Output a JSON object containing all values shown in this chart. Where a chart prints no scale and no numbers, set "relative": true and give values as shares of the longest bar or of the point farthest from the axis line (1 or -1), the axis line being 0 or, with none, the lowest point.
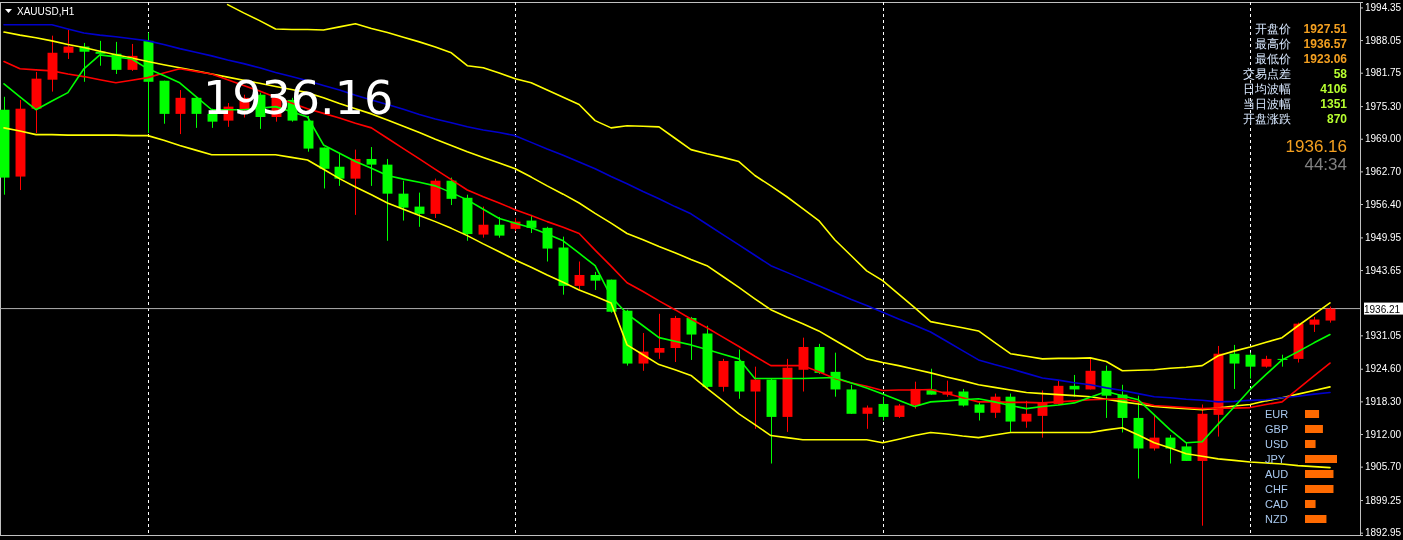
{
  "chart_data": [
    {
      "type": "candlestick",
      "title": "XAUUSD,H1",
      "categories": [
        null,
        null,
        null,
        null,
        null,
        null,
        null,
        null,
        null,
        null,
        null,
        null,
        null,
        null,
        null,
        null,
        null,
        null,
        null,
        null,
        null,
        null,
        null,
        null,
        null,
        null,
        null,
        null,
        null,
        null,
        null,
        null,
        null,
        null,
        null,
        null,
        null,
        null,
        null,
        null,
        null,
        null,
        null,
        null,
        null,
        null,
        null,
        null,
        null,
        null,
        null,
        null,
        null,
        null,
        null,
        null,
        null,
        null,
        null,
        null,
        null,
        null,
        null,
        null,
        null,
        null,
        null,
        null,
        null,
        null,
        null,
        null,
        null,
        null,
        null,
        null,
        null,
        null,
        null,
        null,
        null,
        null,
        null,
        null
      ],
      "ylim": [
        1892.5,
        1995.4
      ],
      "yticks": [
        1892.95,
        1899.25,
        {
          "value": 1905.7,
          "label": "1905.70"
        },
        {
          "value": 1912,
          "label": "1912.00"
        },
        {
          "value": 1918.3,
          "label": "1918.30"
        },
        {
          "value": 1924.6,
          "label": "1924.60"
        },
        1931.05,
        1943.65,
        1949.95,
        {
          "value": 1956.4,
          "label": "1956.40"
        },
        {
          "value": 1962.7,
          "label": "1962.70"
        },
        {
          "value": 1969,
          "label": "1969.00"
        },
        {
          "value": 1975.3,
          "label": "1975.30"
        },
        1981.75,
        1988.05,
        1994.35
      ],
      "tick_labels": "y",
      "grid": "x",
      "ref_lines": [
        {
          "axis": "y",
          "value": 1936.21,
          "label": "1936.21",
          "color": "#b0b0b0"
        }
      ],
      "annotations": [
        "1936.16",
        "开盘价",
        "1927.51",
        "最高价",
        "1936.57",
        "最低价",
        "1923.06",
        "交易点差",
        "58",
        "日均波幅",
        "4106",
        "当日波幅",
        "1351",
        "开盘涨跌",
        "870",
        "1936.16",
        "44:34"
      ],
      "series": [
        {
          "type": "candlestick",
          "ohlc": [
            [
              1974.6,
              1977.1,
              1958.2,
              1961.5
            ],
            [
              1961.7,
              1976.5,
              1959.1,
              1974.8
            ],
            [
              1974.8,
              1981.9,
              1970.1,
              1980.6
            ],
            [
              1980.4,
              1988.9,
              1978.1,
              1985.6
            ],
            [
              1985.6,
              1990.0,
              1984.4,
              1986.8
            ],
            [
              1986.8,
              1987.5,
              1980.0,
              1985.8
            ],
            [
              1985.8,
              1987.9,
              1983.1,
              1985.4
            ],
            [
              1985.4,
              1987.7,
              1981.5,
              1982.3
            ],
            [
              1982.3,
              1987.3,
              1982.1,
              1985.0
            ],
            [
              1987.9,
              1989.5,
              1970.1,
              1980.0
            ],
            [
              1980.2,
              1980.2,
              1971.9,
              1973.8
            ],
            [
              1973.8,
              1978.4,
              1969.9,
              1976.9
            ],
            [
              1976.9,
              1977.1,
              1971.1,
              1973.8
            ],
            [
              1973.8,
              1974.8,
              1971.1,
              1972.3
            ],
            [
              1972.5,
              1975.9,
              1971.3,
              1975.2
            ],
            [
              1974.6,
              1977.5,
              1973.1,
              1976.9
            ],
            [
              1977.5,
              1977.9,
              1970.9,
              1973.2
            ],
            [
              1973.2,
              1977.1,
              1972.3,
              1976.9
            ],
            [
              1976.5,
              1976.9,
              1972.3,
              1972.5
            ],
            [
              1972.5,
              1973.4,
              1966.5,
              1967.1
            ],
            [
              1967.3,
              1967.3,
              1959.4,
              1963.2
            ],
            [
              1963.6,
              1966.3,
              1959.9,
              1961.3
            ],
            [
              1961.3,
              1966.9,
              1954.3,
              1965.1
            ],
            [
              1965.1,
              1967.4,
              1959.9,
              1964.0
            ],
            [
              1964.0,
              1965.1,
              1949.3,
              1958.4
            ],
            [
              1958.4,
              1960.9,
              1953.2,
              1955.7
            ],
            [
              1955.9,
              1958.6,
              1952.0,
              1954.5
            ],
            [
              1954.5,
              1961.3,
              1953.7,
              1960.9
            ],
            [
              1960.9,
              1961.5,
              1956.2,
              1957.4
            ],
            [
              1957.6,
              1958.2,
              1949.3,
              1950.6
            ],
            [
              1950.5,
              1955.9,
              1949.9,
              1952.4
            ],
            [
              1952.4,
              1953.9,
              1949.9,
              1950.3
            ],
            [
              1951.6,
              1953.7,
              1951.2,
              1953.0
            ],
            [
              1953.2,
              1954.3,
              1950.8,
              1951.8
            ],
            [
              1951.8,
              1952.0,
              1945.3,
              1947.8
            ],
            [
              1948.0,
              1950.1,
              1938.9,
              1940.6
            ],
            [
              1940.6,
              1945.3,
              1939.8,
              1942.7
            ],
            [
              1942.7,
              1943.3,
              1939.8,
              1941.6
            ],
            [
              1941.8,
              1941.8,
              1935.4,
              1935.6
            ],
            [
              1935.8,
              1936.0,
              1925.2,
              1925.6
            ],
            [
              1925.6,
              1931.5,
              1924.2,
              1927.9
            ],
            [
              1927.7,
              1935.2,
              1926.5,
              1928.6
            ],
            [
              1928.6,
              1934.8,
              1925.9,
              1934.4
            ],
            [
              1934.4,
              1934.6,
              1926.3,
              1931.2
            ],
            [
              1931.4,
              1932.9,
              1920.9,
              1921.1
            ],
            [
              1921.1,
              1926.5,
              1920.2,
              1926.1
            ],
            [
              1926.1,
              1928.3,
              1918.8,
              1920.2
            ],
            [
              1920.2,
              1925.0,
              1913.0,
              1922.5
            ],
            [
              1922.5,
              1922.7,
              1906.3,
              1915.3
            ],
            [
              1915.3,
              1926.5,
              1912.4,
              1924.8
            ],
            [
              1924.4,
              1930.6,
              1920.2,
              1928.8
            ],
            [
              1928.8,
              1929.4,
              1923.6,
              1923.8
            ],
            [
              1924.0,
              1927.7,
              1919.2,
              1920.6
            ],
            [
              1920.6,
              1921.5,
              1915.9,
              1915.9
            ],
            [
              1915.9,
              1917.5,
              1913.0,
              1917.1
            ],
            [
              1917.8,
              1919.2,
              1914.6,
              1915.3
            ],
            [
              1915.3,
              1917.8,
              1915.1,
              1917.5
            ],
            [
              1917.5,
              1922.1,
              1916.9,
              1920.7
            ],
            [
              1920.6,
              1924.6,
              1919.6,
              1919.6
            ],
            [
              1919.6,
              1922.3,
              1919.2,
              1920.2
            ],
            [
              1920.2,
              1920.7,
              1917.3,
              1917.5
            ],
            [
              1917.7,
              1918.2,
              1914.6,
              1916.1
            ],
            [
              1916.1,
              1919.8,
              1915.1,
              1919.2
            ],
            [
              1919.2,
              1919.8,
              1912.4,
              1914.4
            ],
            [
              1914.4,
              1918.4,
              1913.2,
              1915.9
            ],
            [
              1915.5,
              1920.4,
              1911.3,
              1918.0
            ],
            [
              1917.8,
              1922.3,
              1917.7,
              1921.3
            ],
            [
              1921.3,
              1923.4,
              1919.2,
              1920.6
            ],
            [
              1920.6,
              1926.7,
              1920.6,
              1924.2
            ],
            [
              1924.2,
              1925.2,
              1915.1,
              1919.4
            ],
            [
              1919.6,
              1921.5,
              1912.3,
              1915.1
            ],
            [
              1915.1,
              1919.4,
              1903.4,
              1909.2
            ],
            [
              1909.2,
              1915.5,
              1908.8,
              1911.3
            ],
            [
              1911.3,
              1911.8,
              1906.3,
              1909.2
            ],
            [
              1909.6,
              1910.3,
              1906.8,
              1906.8
            ],
            [
              1906.8,
              1917.7,
              1894.3,
              1915.9
            ],
            [
              1915.7,
              1929.0,
              1911.5,
              1927.5
            ],
            [
              1927.5,
              1929.2,
              1920.7,
              1925.6
            ],
            [
              1927.3,
              1927.7,
              1922.7,
              1925.0
            ],
            [
              1925.0,
              1927.1,
              1924.8,
              1926.5
            ],
            [
              1926.5,
              1927.3,
              1925.0,
              1926.3
            ],
            [
              1926.5,
              1933.5,
              1925.8,
              1933.3
            ],
            [
              1933.1,
              1934.6,
              1931.7,
              1934.1
            ],
            [
              1933.9,
              1936.6,
              1933.5,
              1936.2
            ]
          ],
          "colors": [
            "#00ff00",
            "#ff0000",
            "#ff0000",
            "#ff0000",
            "#ff0000",
            "#00ff00",
            "#00ff00",
            "#00ff00",
            "#ff0000",
            "#00ff00",
            "#00ff00",
            "#ff0000",
            "#00ff00",
            "#00ff00",
            "#ff0000",
            "#ff0000",
            "#00ff00",
            "#ff0000",
            "#00ff00",
            "#00ff00",
            "#00ff00",
            "#00ff00",
            "#ff0000",
            "#00ff00",
            "#00ff00",
            "#00ff00",
            "#00ff00",
            "#ff0000",
            "#00ff00",
            "#00ff00",
            "#ff0000",
            "#00ff00",
            "#ff0000",
            "#00ff00",
            "#00ff00",
            "#00ff00",
            "#ff0000",
            "#00ff00",
            "#00ff00",
            "#00ff00",
            "#ff0000",
            "#ff0000",
            "#ff0000",
            "#00ff00",
            "#00ff00",
            "#ff0000",
            "#00ff00",
            "#ff0000",
            "#00ff00",
            "#ff0000",
            "#ff0000",
            "#00ff00",
            "#00ff00",
            "#00ff00",
            "#ff0000",
            "#00ff00",
            "#ff0000",
            "#ff0000",
            "#00ff00",
            "#ff0000",
            "#00ff00",
            "#00ff00",
            "#ff0000",
            "#00ff00",
            "#ff0000",
            "#ff0000",
            "#ff0000",
            "#00ff00",
            "#ff0000",
            "#00ff00",
            "#00ff00",
            "#00ff00",
            "#ff0000",
            "#00ff00",
            "#00ff00",
            "#ff0000",
            "#ff0000",
            "#00ff00",
            "#00ff00",
            "#ff0000",
            "#00ff00",
            "#ff0000",
            "#ff0000",
            "#ff0000"
          ]
        },
        {
          "type": "line",
          "color": "#ffff00",
          "values": [
            null,
            null,
            null,
            null,
            null,
            null,
            null,
            null,
            null,
            null,
            null,
            null,
            null,
            null,
            1994.9,
            1993.3,
            1991.8,
            1990.2,
            1990.1,
            1990.1,
            1990.0,
            1990.6,
            1991.2,
            1990.3,
            1989.5,
            1988.6,
            1987.7,
            1986.7,
            1985.6,
            1983.1,
            1982.7,
            1981.7,
            1980.6,
            1979.8,
            1978.4,
            1977.0,
            1975.6,
            1972.5,
            1971.1,
            1971.5,
            1971.4,
            1971.3,
            1969.1,
            1966.9,
            1966.1,
            1965.4,
            1964.6,
            1961.9,
            1959.9,
            1957.8,
            1955.5,
            1953.2,
            1949.5,
            1946.5,
            1943.5,
            1941.6,
            1939.0,
            1936.4,
            1933.7,
            1933.1,
            1932.5,
            1931.9,
            1929.7,
            1927.5,
            1927.0,
            1926.5,
            1926.6,
            1926.6,
            1926.7,
            1926.0,
            1924.2,
            1924.3,
            1924.4,
            1924.7,
            1924.9,
            1925.2,
            1927.1,
            1928.0,
            1928.8,
            1929.7,
            1930.6,
            1932.9,
            1935.1,
            1937.3
          ]
        },
        {
          "type": "line",
          "color": "#ffff00",
          "values": [
            1989.6,
            1989.0,
            1988.5,
            1987.9,
            1987.2,
            1986.6,
            1985.9,
            1985.2,
            1984.6,
            1983.9,
            1983.3,
            1982.7,
            1982.1,
            1981.5,
            1980.9,
            1980.3,
            1979.7,
            1979.1,
            1978.5,
            1977.9,
            1976.9,
            1975.8,
            1974.8,
            1973.8,
            1972.6,
            1971.4,
            1970.2,
            1968.9,
            1967.7,
            1966.5,
            1965.4,
            1964.3,
            1963.2,
            1961.6,
            1959.9,
            1958.3,
            1956.6,
            1954.6,
            1952.7,
            1950.7,
            1949.5,
            1948.2,
            1947.0,
            1945.7,
            1944.5,
            1942.4,
            1940.3,
            1938.1,
            1936.0,
            1934.6,
            1933.3,
            1931.9,
            1930.1,
            1928.3,
            1926.5,
            1925.8,
            1925.2,
            1924.5,
            1923.8,
            1923.0,
            1922.3,
            1921.5,
            1921.0,
            1920.5,
            1920.0,
            1919.8,
            1919.6,
            1919.4,
            1919.2,
            1918.7,
            1918.2,
            1917.8,
            1917.3,
            1917.1,
            1916.9,
            1916.7,
            1917.0,
            1917.4,
            1917.7,
            1918.4,
            1919.0,
            1919.7,
            1920.4,
            1921.1
          ]
        },
        {
          "type": "line",
          "color": "#ffff00",
          "values": [
            1971.1,
            1970.5,
            1969.8,
            1969.8,
            1969.7,
            1969.7,
            1969.7,
            1969.7,
            1969.6,
            1969.6,
            1968.7,
            1967.7,
            1966.8,
            1965.9,
            1965.9,
            1965.9,
            1965.9,
            1965.9,
            1965.4,
            1964.9,
            1963.1,
            1961.3,
            1959.7,
            1958.2,
            1956.6,
            1955.4,
            1954.2,
            1953.0,
            1951.7,
            1950.3,
            1948.7,
            1947.2,
            1945.6,
            1944.2,
            1942.7,
            1941.3,
            1939.8,
            1938.6,
            1937.3,
            1929.2,
            1927.3,
            1925.4,
            1924.4,
            1923.3,
            1920.8,
            1918.4,
            1915.9,
            1913.8,
            1911.7,
            1911.3,
            1910.9,
            1910.9,
            1910.9,
            1910.9,
            1910.9,
            1910.3,
            1911.0,
            1911.7,
            1912.3,
            1912.0,
            1911.6,
            1911.3,
            1911.8,
            1912.3,
            1912.3,
            1912.3,
            1912.3,
            1912.3,
            1912.3,
            1912.8,
            1913.2,
            1911.8,
            1910.3,
            1909.3,
            1908.2,
            1907.7,
            1907.2,
            1906.9,
            1906.6,
            1906.4,
            1906.2,
            1905.9,
            1905.7,
            1905.5
          ]
        },
        {
          "type": "line",
          "color": "#0000cc",
          "values": [
            1991.0,
            1991.0,
            1991.0,
            1991.0,
            1990.2,
            1989.4,
            1989.0,
            1988.7,
            1988.3,
            1987.9,
            1987.2,
            1986.4,
            1985.7,
            1985.0,
            1984.2,
            1983.5,
            1982.7,
            1981.8,
            1981.0,
            1980.2,
            1979.3,
            1978.4,
            1977.4,
            1976.5,
            1975.6,
            1974.7,
            1973.7,
            1972.8,
            1972.1,
            1971.3,
            1970.7,
            1970.2,
            1969.6,
            1968.3,
            1967.0,
            1965.8,
            1964.5,
            1963.2,
            1961.7,
            1960.3,
            1958.8,
            1957.4,
            1955.9,
            1954.5,
            1952.5,
            1950.5,
            1948.5,
            1946.5,
            1944.5,
            1943.2,
            1941.9,
            1940.6,
            1939.3,
            1938.0,
            1936.8,
            1935.5,
            1934.2,
            1933.0,
            1931.7,
            1929.9,
            1928.1,
            1926.3,
            1925.4,
            1924.6,
            1923.7,
            1922.8,
            1922.4,
            1921.9,
            1921.5,
            1920.9,
            1920.4,
            1919.8,
            1919.2,
            1919.0,
            1918.7,
            1918.5,
            1918.2,
            1918.3,
            1918.5,
            1918.6,
            1919.0,
            1919.3,
            1919.7,
            1920.0
          ]
        },
        {
          "type": "line",
          "color": "#ff0000",
          "values": [
            1983.9,
            1982.5,
            1982.3,
            1982.1,
            1981.5,
            1981.0,
            1980.4,
            1979.8,
            1980.3,
            1980.8,
            1981.7,
            1982.5,
            1982.0,
            1981.5,
            1980.4,
            1979.3,
            1978.2,
            1977.0,
            1975.9,
            1974.8,
            1973.9,
            1973.0,
            1972.0,
            1971.1,
            1969.1,
            1967.1,
            1965.1,
            1963.1,
            1961.1,
            1959.1,
            1957.8,
            1956.6,
            1955.3,
            1954.2,
            1953.0,
            1951.9,
            1950.7,
            1947.5,
            1944.4,
            1941.2,
            1939.5,
            1937.7,
            1936.0,
            1934.2,
            1932.5,
            1930.7,
            1928.9,
            1927.0,
            1925.2,
            1925.2,
            1925.2,
            1924.0,
            1922.7,
            1921.9,
            1921.2,
            1920.4,
            1920.5,
            1920.5,
            1920.6,
            1919.8,
            1919.0,
            1918.2,
            1918.2,
            1918.1,
            1918.1,
            1918.0,
            1918.2,
            1918.4,
            1918.6,
            1918.7,
            1918.8,
            1918.2,
            1917.5,
            1917.3,
            1917.1,
            1916.9,
            1917.0,
            1917.0,
            1917.1,
            1917.7,
            1918.2,
            1920.7,
            1923.2,
            1925.7
          ]
        },
        {
          "type": "line",
          "color": "#00ff00",
          "values": [
            1979.6,
            1977.1,
            1974.6,
            1976.3,
            1977.9,
            1982.5,
            1985.2,
            1984.8,
            1984.4,
            1982.5,
            1981.2,
            1979.8,
            1977.2,
            1974.6,
            1974.6,
            1974.6,
            1974.9,
            1975.2,
            1974.2,
            1973.2,
            1967.8,
            1966.2,
            1964.6,
            1963.3,
            1961.9,
            1961.2,
            1960.6,
            1959.9,
            1958.6,
            1957.2,
            1955.4,
            1953.6,
            1952.7,
            1951.8,
            1950.6,
            1949.3,
            1946.9,
            1944.5,
            1938.5,
            1935.2,
            1932.9,
            1930.6,
            1929.9,
            1929.2,
            1928.3,
            1927.4,
            1926.5,
            1922.7,
            1922.7,
            1922.7,
            1922.7,
            1922.8,
            1922.9,
            1921.9,
            1920.9,
            1919.7,
            1918.5,
            1917.3,
            1918.2,
            1918.4,
            1918.6,
            1918.8,
            1918.2,
            1917.5,
            1916.9,
            1917.3,
            1917.6,
            1918.0,
            1919.1,
            1920.2,
            1919.4,
            1918.6,
            1915.7,
            1912.8,
            1910.3,
            1910.5,
            1913.9,
            1917.2,
            1920.6,
            1923.5,
            1926.3,
            1927.9,
            1929.6,
            1931.2
          ]
        }
      ]
    },
    {
      "type": "bar",
      "orientation": "horizontal",
      "relative": true,
      "color": "#ff6a00",
      "categories": [
        "EUR",
        "GBP",
        "USD",
        "JPY",
        "AUD",
        "CHF",
        "CAD",
        "NZD"
      ],
      "values": [
        0.44,
        0.56,
        0.33,
        1,
        0.89,
        0.89,
        0.33,
        0.67
      ]
    }
  ]
}
